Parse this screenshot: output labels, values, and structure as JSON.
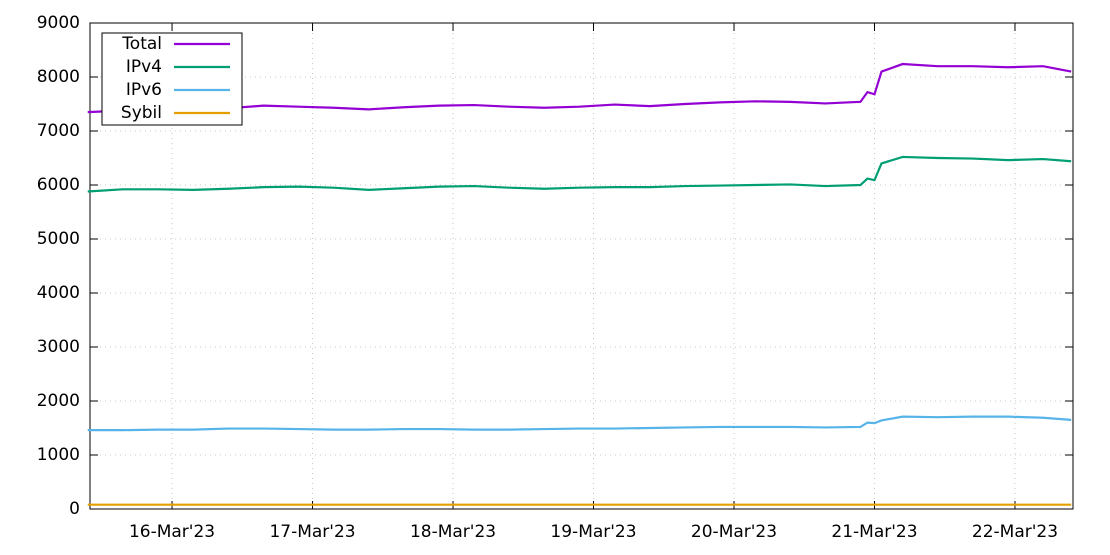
{
  "chart_data": {
    "type": "line",
    "x": [
      15.4,
      15.65,
      15.9,
      16.15,
      16.4,
      16.65,
      16.9,
      17.15,
      17.4,
      17.65,
      17.9,
      18.15,
      18.4,
      18.65,
      18.9,
      19.15,
      19.4,
      19.65,
      19.9,
      20.15,
      20.4,
      20.65,
      20.9,
      20.95,
      21.0,
      21.05,
      21.2,
      21.45,
      21.7,
      21.95,
      22.2,
      22.4
    ],
    "series": [
      {
        "name": "Total",
        "color": "#9400d3",
        "values": [
          7350,
          7380,
          7420,
          7440,
          7420,
          7470,
          7450,
          7430,
          7400,
          7440,
          7470,
          7480,
          7450,
          7430,
          7450,
          7490,
          7460,
          7500,
          7530,
          7550,
          7540,
          7510,
          7540,
          7720,
          7680,
          8100,
          8240,
          8200,
          8200,
          8180,
          8200,
          8100
        ]
      },
      {
        "name": "IPv4",
        "color": "#009e73",
        "values": [
          5880,
          5920,
          5920,
          5910,
          5930,
          5960,
          5970,
          5950,
          5910,
          5940,
          5970,
          5980,
          5950,
          5930,
          5950,
          5960,
          5960,
          5980,
          5990,
          6000,
          6010,
          5980,
          6000,
          6120,
          6090,
          6400,
          6520,
          6500,
          6490,
          6460,
          6480,
          6440
        ]
      },
      {
        "name": "IPv6",
        "color": "#56b4e9",
        "values": [
          1460,
          1460,
          1470,
          1470,
          1490,
          1490,
          1480,
          1470,
          1470,
          1480,
          1480,
          1470,
          1470,
          1480,
          1490,
          1490,
          1500,
          1510,
          1520,
          1520,
          1520,
          1510,
          1520,
          1600,
          1590,
          1640,
          1710,
          1700,
          1710,
          1710,
          1690,
          1650
        ]
      },
      {
        "name": "Sybil",
        "color": "#e69f00",
        "values": [
          80,
          80,
          80,
          80,
          80,
          80,
          80,
          80,
          80,
          80,
          80,
          80,
          80,
          80,
          80,
          80,
          80,
          80,
          80,
          80,
          80,
          80,
          80,
          80,
          80,
          80,
          80,
          80,
          80,
          80,
          80,
          80
        ]
      }
    ],
    "xlim": [
      15.416,
      22.413
    ],
    "xticks": [
      {
        "value": 16,
        "label": "16-Mar'23"
      },
      {
        "value": 17,
        "label": "17-Mar'23"
      },
      {
        "value": 18,
        "label": "18-Mar'23"
      },
      {
        "value": 19,
        "label": "19-Mar'23"
      },
      {
        "value": 20,
        "label": "20-Mar'23"
      },
      {
        "value": 21,
        "label": "21-Mar'23"
      },
      {
        "value": 22,
        "label": "22-Mar'23"
      }
    ],
    "ylim": [
      0,
      9000
    ],
    "yticks": [
      0,
      1000,
      2000,
      3000,
      4000,
      5000,
      6000,
      7000,
      8000,
      9000
    ],
    "grid": true,
    "legend": "top-left"
  }
}
